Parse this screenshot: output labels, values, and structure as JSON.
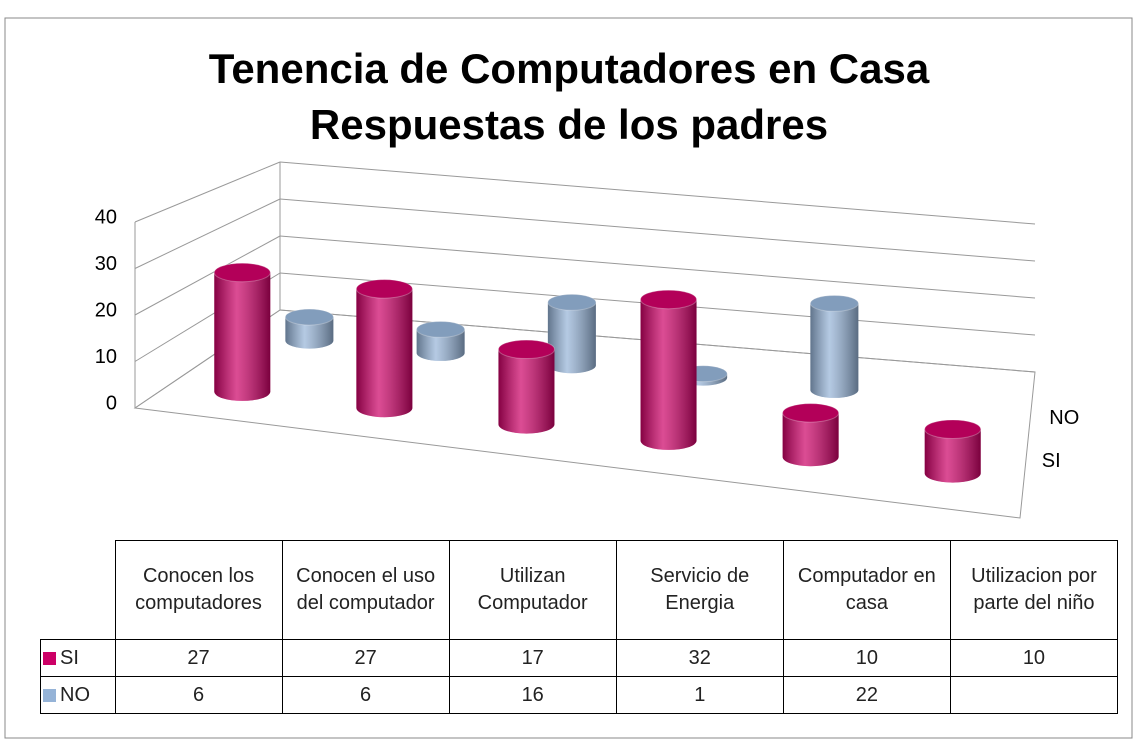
{
  "chart_data": {
    "type": "bar",
    "title": "Tenencia de Computadores en Casa",
    "subtitle": "Respuestas de los padres",
    "categories": [
      "Conocen los computadores",
      "Conocen el uso del computador",
      "Utilizan Computador",
      "Servicio de Energia",
      "Computador en casa",
      "Utilizacion por parte del niño"
    ],
    "series": [
      {
        "name": "SI",
        "color": "#cc0066",
        "values": [
          27,
          27,
          17,
          32,
          10,
          10
        ]
      },
      {
        "name": "NO",
        "color": "#95b3d7",
        "values": [
          6,
          6,
          16,
          1,
          22,
          null
        ]
      }
    ],
    "ylim": [
      0,
      40
    ],
    "yticks": [
      0,
      10,
      20,
      30,
      40
    ],
    "grid": true
  }
}
